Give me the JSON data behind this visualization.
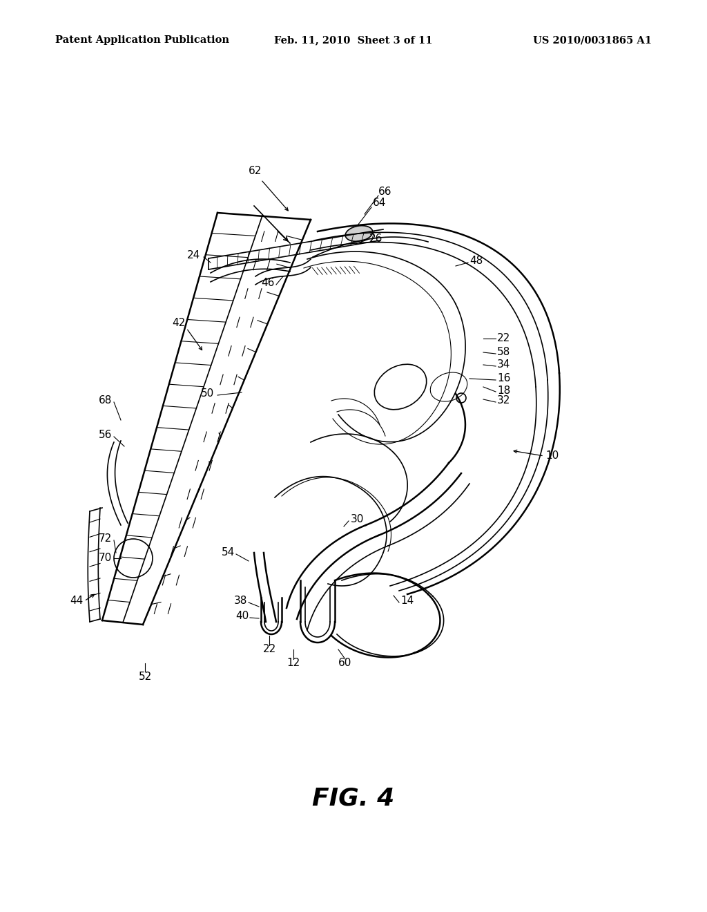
{
  "background_color": "#ffffff",
  "header_left": "Patent Application Publication",
  "header_center": "Feb. 11, 2010  Sheet 3 of 11",
  "header_right": "US 2010/0031865 A1",
  "figure_label": "FIG. 4",
  "line_color": "#000000",
  "text_color": "#000000",
  "header_fontsize": 10.5,
  "label_fontsize": 11,
  "fig4_fontsize": 26
}
